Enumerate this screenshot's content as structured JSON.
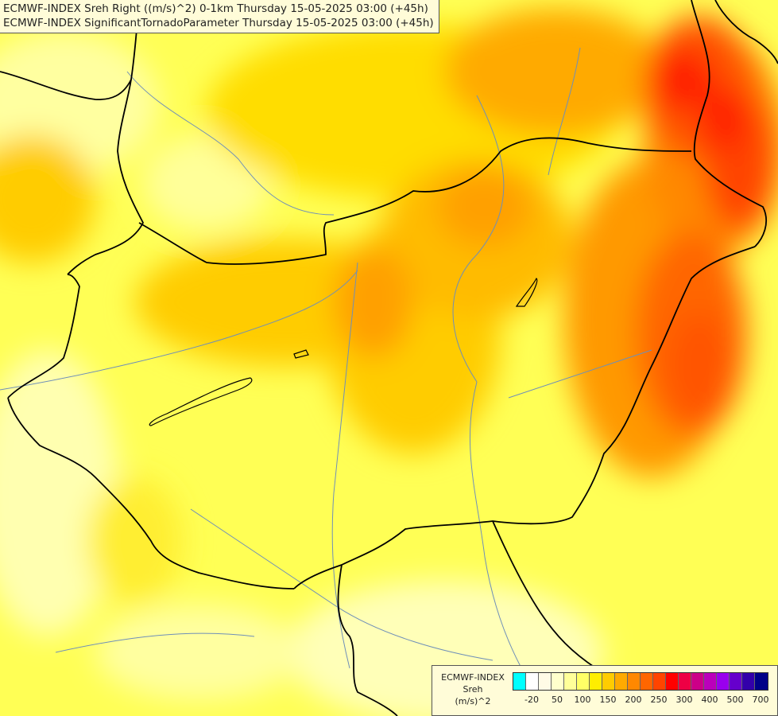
{
  "titles": [
    "ECMWF-INDEX Sreh Right ((m/s)^2) 0-1km Thursday 15-05-2025 03:00 (+45h)",
    "ECMWF-INDEX SignificantTornadoParameter Thursday 15-05-2025 03:00 (+45h)"
  ],
  "legend": {
    "line1": "ECMWF-INDEX",
    "line2": "Sreh",
    "line3": "(m/s)^2",
    "colors": [
      "#00ffff",
      "#ffffff",
      "#fffbe6",
      "#ffffcc",
      "#ffff99",
      "#ffff66",
      "#ffee00",
      "#ffcc00",
      "#ffaa00",
      "#ff8800",
      "#ff6600",
      "#ff4400",
      "#ff0000",
      "#ee0044",
      "#cc0088",
      "#bb00bb",
      "#9900ee",
      "#6600cc",
      "#3300aa",
      "#000088"
    ],
    "ticks": [
      {
        "label": "-20",
        "index": 1
      },
      {
        "label": "50",
        "index": 3
      },
      {
        "label": "100",
        "index": 5
      },
      {
        "label": "150",
        "index": 7
      },
      {
        "label": "200",
        "index": 9
      },
      {
        "label": "250",
        "index": 11
      },
      {
        "label": "300",
        "index": 13
      },
      {
        "label": "400",
        "index": 15
      },
      {
        "label": "500",
        "index": 17
      },
      {
        "label": "700",
        "index": 19
      }
    ]
  }
}
